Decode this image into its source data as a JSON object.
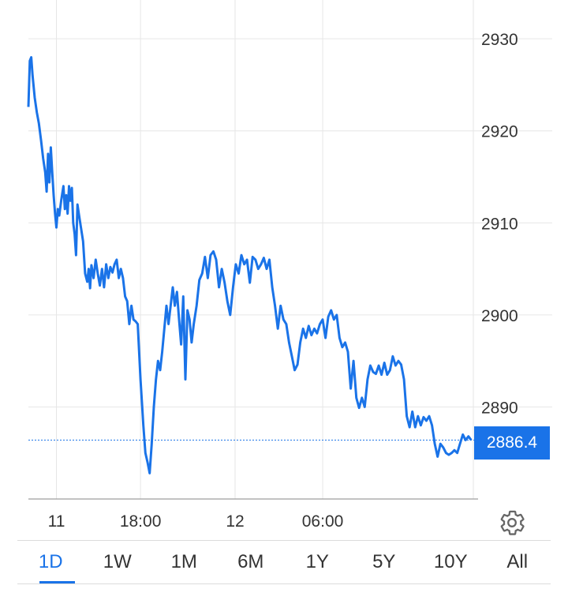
{
  "chart_data": {
    "type": "line",
    "series": [
      {
        "color": "#1a73e8",
        "points": [
          [
            0.0,
            2922.6
          ],
          [
            0.02,
            2927.6
          ],
          [
            0.04,
            2928.0
          ],
          [
            0.06,
            2926.0
          ],
          [
            0.09,
            2923.6
          ],
          [
            0.12,
            2922.0
          ],
          [
            0.15,
            2920.8
          ],
          [
            0.18,
            2919.0
          ],
          [
            0.21,
            2917.0
          ],
          [
            0.24,
            2915.5
          ],
          [
            0.26,
            2913.4
          ],
          [
            0.28,
            2917.5
          ],
          [
            0.3,
            2914.4
          ],
          [
            0.32,
            2918.2
          ],
          [
            0.34,
            2915.5
          ],
          [
            0.36,
            2913.0
          ],
          [
            0.38,
            2911.0
          ],
          [
            0.4,
            2909.5
          ],
          [
            0.42,
            2911.5
          ],
          [
            0.44,
            2910.8
          ],
          [
            0.47,
            2912.5
          ],
          [
            0.5,
            2914.0
          ],
          [
            0.52,
            2911.5
          ],
          [
            0.54,
            2913.0
          ],
          [
            0.56,
            2911.0
          ],
          [
            0.58,
            2914.0
          ],
          [
            0.6,
            2912.4
          ],
          [
            0.62,
            2913.8
          ],
          [
            0.64,
            2910.0
          ],
          [
            0.66,
            2908.8
          ],
          [
            0.68,
            2906.5
          ],
          [
            0.7,
            2912.0
          ],
          [
            0.72,
            2911.0
          ],
          [
            0.75,
            2909.5
          ],
          [
            0.78,
            2908.0
          ],
          [
            0.81,
            2904.5
          ],
          [
            0.84,
            2903.6
          ],
          [
            0.86,
            2905.0
          ],
          [
            0.88,
            2902.9
          ],
          [
            0.9,
            2905.4
          ],
          [
            0.93,
            2904.0
          ],
          [
            0.96,
            2906.0
          ],
          [
            0.99,
            2904.5
          ],
          [
            1.02,
            2903.2
          ],
          [
            1.05,
            2905.0
          ],
          [
            1.08,
            2903.0
          ],
          [
            1.11,
            2905.5
          ],
          [
            1.14,
            2904.0
          ],
          [
            1.17,
            2905.2
          ],
          [
            1.2,
            2904.6
          ],
          [
            1.23,
            2905.5
          ],
          [
            1.26,
            2906.0
          ],
          [
            1.29,
            2904.0
          ],
          [
            1.32,
            2905.0
          ],
          [
            1.35,
            2904.0
          ],
          [
            1.38,
            2902.0
          ],
          [
            1.41,
            2901.5
          ],
          [
            1.44,
            2899.0
          ],
          [
            1.47,
            2901.0
          ],
          [
            1.5,
            2899.5
          ],
          [
            1.53,
            2899.3
          ],
          [
            1.56,
            2899.0
          ],
          [
            1.6,
            2893.0
          ],
          [
            1.64,
            2888.0
          ],
          [
            1.67,
            2885.0
          ],
          [
            1.7,
            2884.0
          ],
          [
            1.73,
            2882.8
          ],
          [
            1.76,
            2886.0
          ],
          [
            1.79,
            2890.0
          ],
          [
            1.82,
            2893.0
          ],
          [
            1.85,
            2895.0
          ],
          [
            1.88,
            2894.0
          ],
          [
            1.91,
            2896.0
          ],
          [
            1.94,
            2898.5
          ],
          [
            1.97,
            2901.0
          ],
          [
            2.0,
            2899.0
          ],
          [
            2.03,
            2901.0
          ],
          [
            2.06,
            2903.0
          ],
          [
            2.09,
            2901.0
          ],
          [
            2.12,
            2902.5
          ],
          [
            2.15,
            2899.5
          ],
          [
            2.18,
            2896.8
          ],
          [
            2.21,
            2902.0
          ],
          [
            2.24,
            2893.0
          ],
          [
            2.27,
            2900.5
          ],
          [
            2.3,
            2899.5
          ],
          [
            2.33,
            2897.0
          ],
          [
            2.36,
            2899.0
          ],
          [
            2.4,
            2901.0
          ],
          [
            2.44,
            2903.8
          ],
          [
            2.48,
            2904.5
          ],
          [
            2.52,
            2906.3
          ],
          [
            2.56,
            2904.0
          ],
          [
            2.6,
            2906.5
          ],
          [
            2.64,
            2906.9
          ],
          [
            2.68,
            2906.0
          ],
          [
            2.72,
            2903.0
          ],
          [
            2.76,
            2905.0
          ],
          [
            2.8,
            2903.5
          ],
          [
            2.84,
            2901.5
          ],
          [
            2.88,
            2900.0
          ],
          [
            2.92,
            2903.0
          ],
          [
            2.96,
            2905.5
          ],
          [
            3.0,
            2904.5
          ],
          [
            3.04,
            2906.5
          ],
          [
            3.08,
            2905.5
          ],
          [
            3.12,
            2906.0
          ],
          [
            3.16,
            2903.5
          ],
          [
            3.2,
            2906.3
          ],
          [
            3.24,
            2906.0
          ],
          [
            3.28,
            2905.0
          ],
          [
            3.32,
            2905.5
          ],
          [
            3.36,
            2906.2
          ],
          [
            3.4,
            2905.0
          ],
          [
            3.44,
            2906.0
          ],
          [
            3.48,
            2903.0
          ],
          [
            3.52,
            2901.0
          ],
          [
            3.56,
            2898.5
          ],
          [
            3.6,
            2901.0
          ],
          [
            3.64,
            2899.5
          ],
          [
            3.68,
            2899.0
          ],
          [
            3.72,
            2897.0
          ],
          [
            3.76,
            2895.5
          ],
          [
            3.8,
            2894.0
          ],
          [
            3.84,
            2894.6
          ],
          [
            3.88,
            2897.0
          ],
          [
            3.92,
            2898.5
          ],
          [
            3.96,
            2897.5
          ],
          [
            4.0,
            2898.8
          ],
          [
            4.04,
            2897.8
          ],
          [
            4.08,
            2898.5
          ],
          [
            4.12,
            2898.0
          ],
          [
            4.16,
            2899.0
          ],
          [
            4.2,
            2899.5
          ],
          [
            4.24,
            2897.5
          ],
          [
            4.28,
            2899.8
          ],
          [
            4.32,
            2900.5
          ],
          [
            4.36,
            2899.5
          ],
          [
            4.4,
            2900.0
          ],
          [
            4.44,
            2897.5
          ],
          [
            4.48,
            2896.5
          ],
          [
            4.52,
            2897.0
          ],
          [
            4.56,
            2896.0
          ],
          [
            4.6,
            2892.0
          ],
          [
            4.64,
            2895.0
          ],
          [
            4.68,
            2891.0
          ],
          [
            4.72,
            2889.9
          ],
          [
            4.76,
            2891.0
          ],
          [
            4.8,
            2890.0
          ],
          [
            4.84,
            2893.0
          ],
          [
            4.88,
            2894.5
          ],
          [
            4.92,
            2893.8
          ],
          [
            4.96,
            2893.6
          ],
          [
            5.0,
            2894.5
          ],
          [
            5.04,
            2893.5
          ],
          [
            5.08,
            2894.8
          ],
          [
            5.12,
            2893.5
          ],
          [
            5.16,
            2894.0
          ],
          [
            5.2,
            2895.5
          ],
          [
            5.24,
            2894.5
          ],
          [
            5.28,
            2895.0
          ],
          [
            5.32,
            2894.6
          ],
          [
            5.36,
            2893.0
          ],
          [
            5.4,
            2889.0
          ],
          [
            5.44,
            2887.8
          ],
          [
            5.48,
            2889.5
          ],
          [
            5.52,
            2887.8
          ],
          [
            5.56,
            2889.0
          ],
          [
            5.6,
            2888.0
          ],
          [
            5.64,
            2888.9
          ],
          [
            5.68,
            2888.5
          ],
          [
            5.72,
            2889.0
          ],
          [
            5.76,
            2888.0
          ],
          [
            5.8,
            2886.0
          ],
          [
            5.84,
            2884.6
          ],
          [
            5.88,
            2886.0
          ],
          [
            5.92,
            2885.6
          ],
          [
            5.96,
            2885.0
          ],
          [
            6.0,
            2884.8
          ],
          [
            6.04,
            2885.0
          ],
          [
            6.08,
            2885.3
          ],
          [
            6.12,
            2885.0
          ],
          [
            6.16,
            2886.0
          ],
          [
            6.2,
            2887.0
          ],
          [
            6.24,
            2886.4
          ],
          [
            6.28,
            2886.8
          ],
          [
            6.32,
            2886.4
          ]
        ]
      }
    ],
    "x_ticks": [
      {
        "x": 0.4,
        "label": "11"
      },
      {
        "x": 1.6,
        "label": "18:00"
      },
      {
        "x": 2.95,
        "label": "12"
      },
      {
        "x": 4.2,
        "label": "06:00"
      }
    ],
    "y_ticks": [
      2890,
      2900,
      2910,
      2920,
      2930
    ],
    "xlim": [
      0,
      6.35
    ],
    "ylim": [
      2880,
      2932.5
    ],
    "current_value": 2886.4,
    "current_label": "2886.4",
    "grid": true
  },
  "range_tabs": [
    "1D",
    "1W",
    "1M",
    "6M",
    "1Y",
    "5Y",
    "10Y",
    "All"
  ],
  "active_tab": "1D",
  "colors": {
    "accent": "#1a73e8",
    "grid": "#e6e6e6"
  },
  "icons": {
    "settings": "gear-icon"
  }
}
